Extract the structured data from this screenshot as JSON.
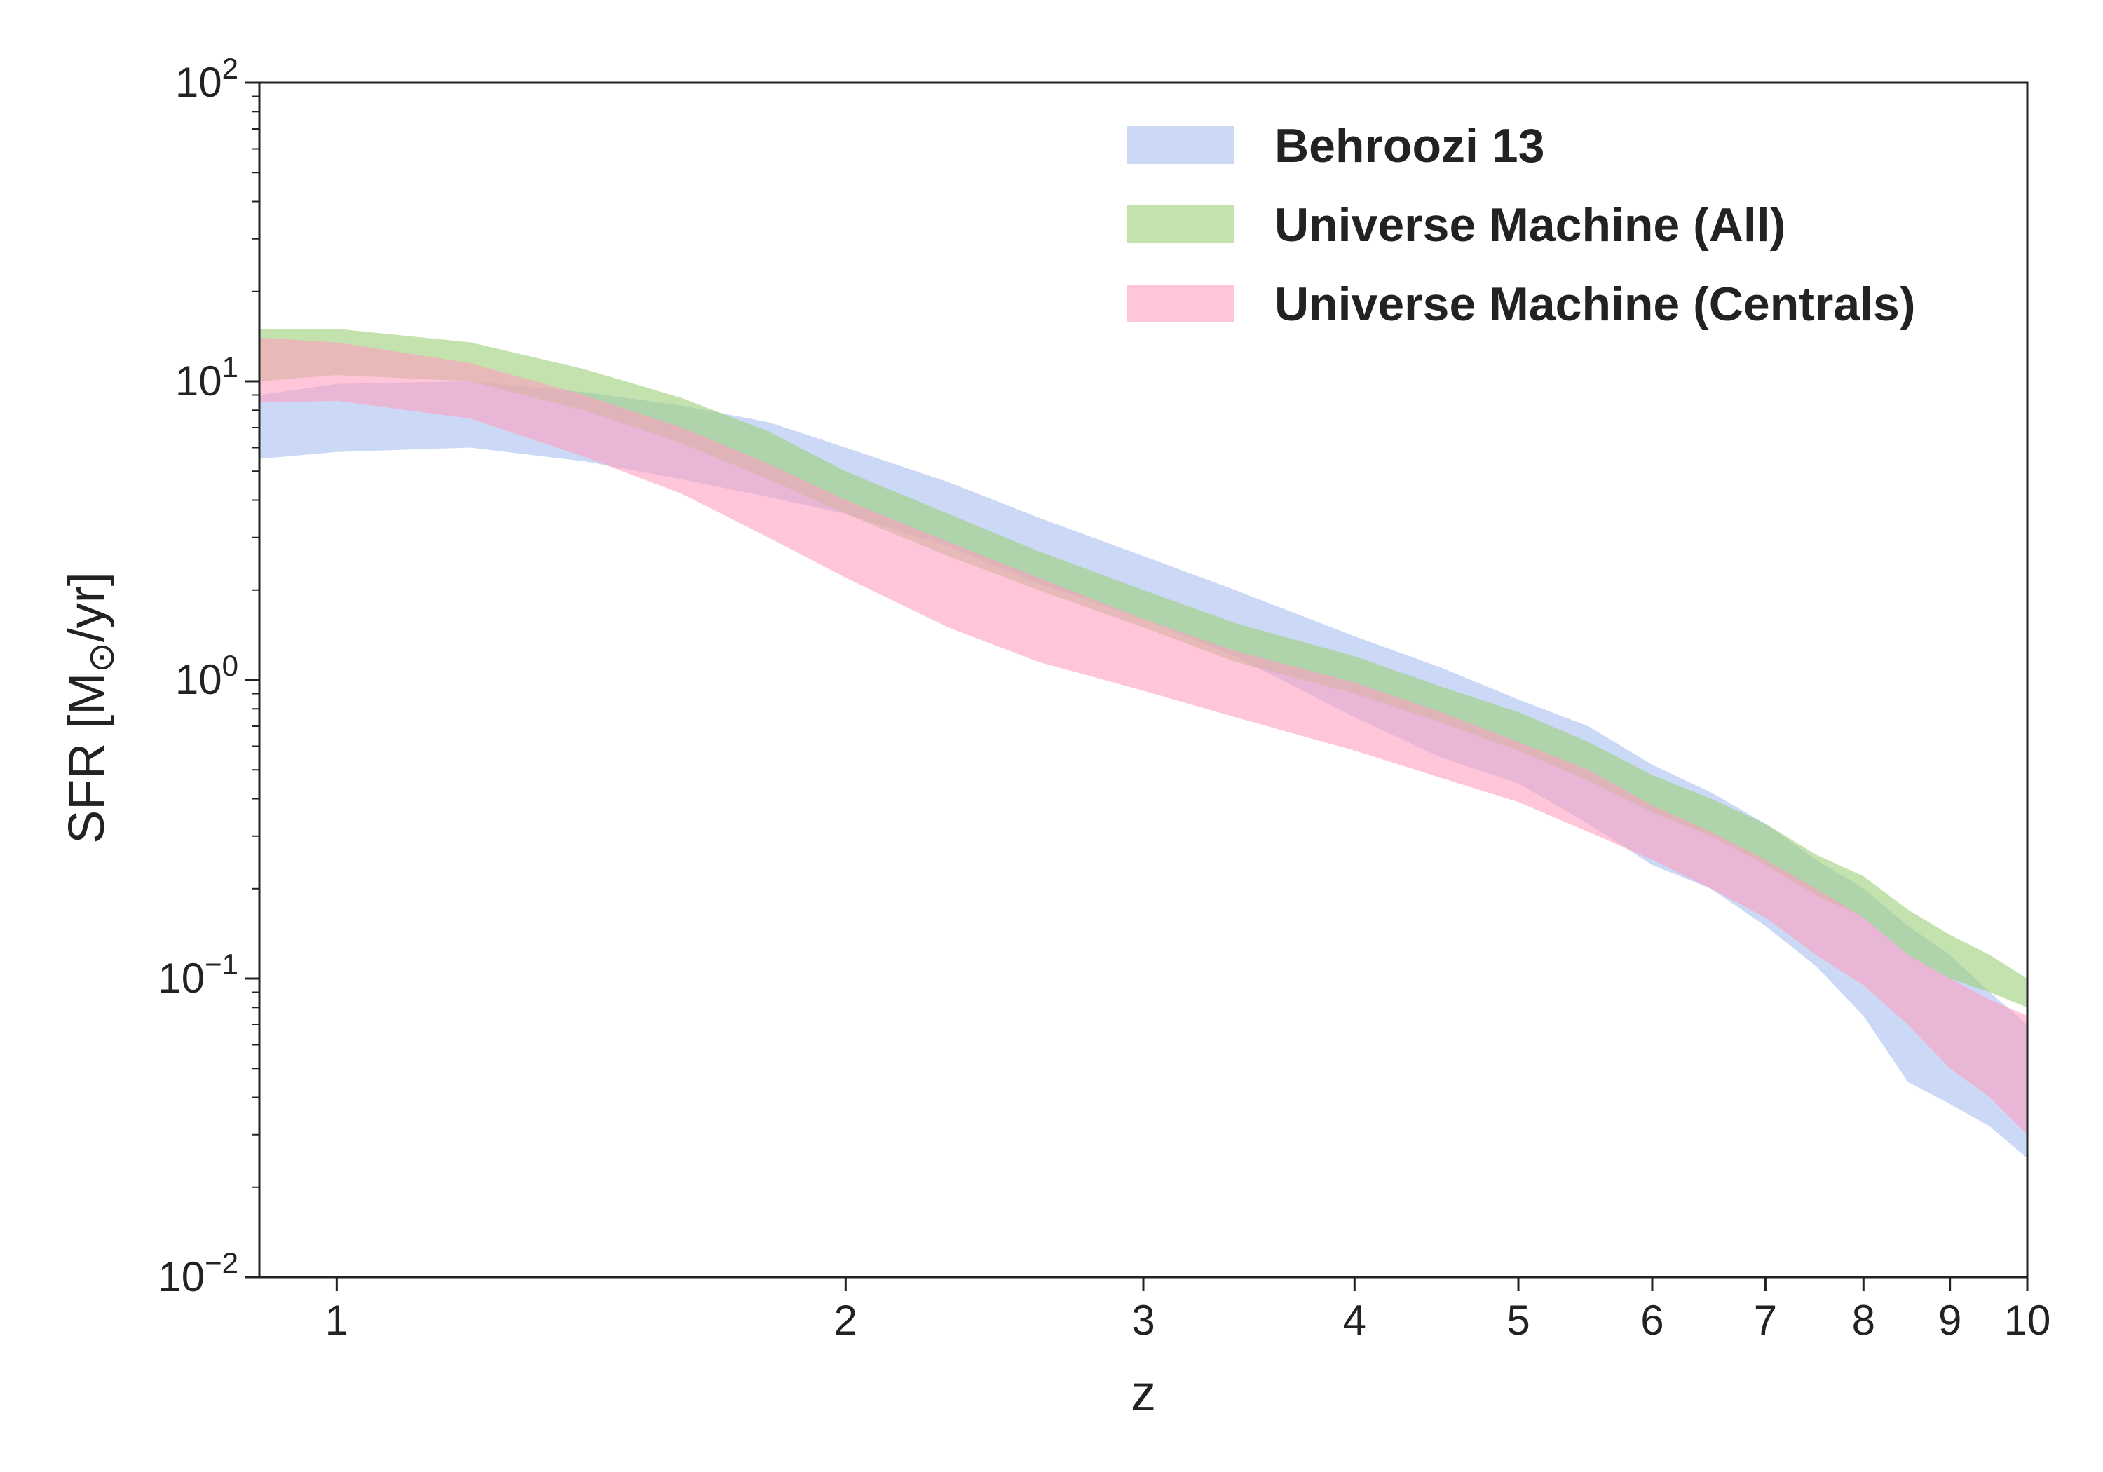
{
  "chart_data": {
    "type": "area",
    "xlabel": "z",
    "ylabel": "SFR  [M",
    "ylabel_unit_tail": "/yr]",
    "x_scale": "log",
    "y_scale": "log",
    "xlim": [
      0.9,
      10
    ],
    "ylim": [
      0.01,
      100
    ],
    "x_ticks": [
      1,
      2,
      3,
      4,
      5,
      6,
      7,
      8,
      9,
      10
    ],
    "x_tick_labels": [
      "1",
      "2",
      "3",
      "4",
      "5",
      "6",
      "7",
      "8",
      "9",
      "10"
    ],
    "y_ticks": [
      0.01,
      0.1,
      1,
      10,
      100
    ],
    "y_tick_labels": [
      {
        "base": "10",
        "exp": "−2"
      },
      {
        "base": "10",
        "exp": "−1"
      },
      {
        "base": "10",
        "exp": "0"
      },
      {
        "base": "10",
        "exp": "1"
      },
      {
        "base": "10",
        "exp": "2"
      }
    ],
    "grid": false,
    "legend_position": "top-right",
    "series": [
      {
        "name": "Behroozi 13",
        "color": "#a8c0f0",
        "opacity": 0.6,
        "x": [
          0.9,
          1.0,
          1.2,
          1.4,
          1.6,
          1.8,
          2.0,
          2.3,
          2.6,
          3.0,
          3.4,
          4.0,
          4.5,
          5.0,
          5.5,
          6.0,
          6.5,
          7.0,
          7.5,
          8.0,
          8.5,
          9.0,
          9.5,
          10.0
        ],
        "upper": [
          9.0,
          9.8,
          10.0,
          9.2,
          8.3,
          7.3,
          6.0,
          4.6,
          3.5,
          2.6,
          2.0,
          1.4,
          1.1,
          0.86,
          0.7,
          0.52,
          0.42,
          0.33,
          0.25,
          0.2,
          0.15,
          0.12,
          0.09,
          0.07
        ],
        "lower": [
          5.5,
          5.8,
          6.0,
          5.4,
          4.7,
          4.1,
          3.6,
          2.8,
          2.1,
          1.6,
          1.2,
          0.75,
          0.55,
          0.45,
          0.33,
          0.24,
          0.2,
          0.15,
          0.11,
          0.075,
          0.045,
          0.038,
          0.032,
          0.025
        ]
      },
      {
        "name": "Universe Machine (All)",
        "color": "#9ccf78",
        "opacity": 0.6,
        "x": [
          0.9,
          1.0,
          1.2,
          1.4,
          1.6,
          1.8,
          2.0,
          2.3,
          2.6,
          3.0,
          3.4,
          4.0,
          4.5,
          5.0,
          5.5,
          6.0,
          6.5,
          7.0,
          7.5,
          8.0,
          8.5,
          9.0,
          9.5,
          10.0
        ],
        "upper": [
          15.0,
          15.0,
          13.5,
          11.0,
          8.8,
          6.8,
          5.0,
          3.6,
          2.7,
          2.0,
          1.55,
          1.2,
          0.95,
          0.78,
          0.62,
          0.48,
          0.4,
          0.33,
          0.26,
          0.22,
          0.17,
          0.14,
          0.12,
          0.1
        ],
        "lower": [
          10.0,
          10.5,
          10.0,
          8.0,
          6.2,
          4.7,
          3.6,
          2.6,
          2.0,
          1.5,
          1.15,
          0.9,
          0.72,
          0.58,
          0.46,
          0.36,
          0.3,
          0.24,
          0.19,
          0.16,
          0.12,
          0.1,
          0.09,
          0.08
        ]
      },
      {
        "name": "Universe Machine (Centrals)",
        "color": "#ff9ec0",
        "opacity": 0.6,
        "x": [
          0.9,
          1.0,
          1.2,
          1.4,
          1.6,
          1.8,
          2.0,
          2.3,
          2.6,
          3.0,
          3.4,
          4.0,
          4.5,
          5.0,
          5.5,
          6.0,
          6.5,
          7.0,
          7.5,
          8.0,
          8.5,
          9.0,
          9.5,
          10.0
        ],
        "upper": [
          14.0,
          13.5,
          11.5,
          9.0,
          7.0,
          5.3,
          4.0,
          2.9,
          2.2,
          1.6,
          1.25,
          0.98,
          0.78,
          0.62,
          0.5,
          0.38,
          0.31,
          0.25,
          0.2,
          0.16,
          0.12,
          0.1,
          0.085,
          0.075
        ],
        "lower": [
          8.5,
          8.6,
          7.5,
          5.6,
          4.2,
          3.0,
          2.2,
          1.5,
          1.15,
          0.92,
          0.75,
          0.58,
          0.47,
          0.39,
          0.31,
          0.25,
          0.2,
          0.16,
          0.12,
          0.095,
          0.07,
          0.05,
          0.04,
          0.03
        ]
      }
    ]
  }
}
